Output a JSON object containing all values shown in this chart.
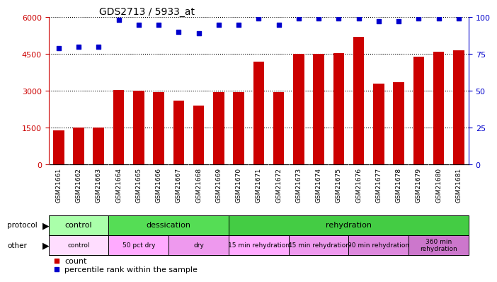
{
  "title": "GDS2713 / 5933_at",
  "samples": [
    "GSM21661",
    "GSM21662",
    "GSM21663",
    "GSM21664",
    "GSM21665",
    "GSM21666",
    "GSM21667",
    "GSM21668",
    "GSM21669",
    "GSM21670",
    "GSM21671",
    "GSM21672",
    "GSM21673",
    "GSM21674",
    "GSM21675",
    "GSM21676",
    "GSM21677",
    "GSM21678",
    "GSM21679",
    "GSM21680",
    "GSM21681"
  ],
  "bar_values": [
    1400,
    1500,
    1500,
    3050,
    3000,
    2950,
    2600,
    2400,
    2950,
    2950,
    4200,
    2950,
    4500,
    4500,
    4550,
    5200,
    3300,
    3350,
    4400,
    4600,
    4650
  ],
  "dot_values_pct": [
    79,
    80,
    80,
    98,
    95,
    95,
    90,
    89,
    95,
    95,
    99,
    95,
    99,
    99,
    99,
    99,
    97,
    97,
    99,
    99,
    99
  ],
  "bar_color": "#cc0000",
  "dot_color": "#0000cc",
  "ylim_left": [
    0,
    6000
  ],
  "ylim_right": [
    0,
    100
  ],
  "yticks_left": [
    0,
    1500,
    3000,
    4500,
    6000
  ],
  "yticks_right": [
    0,
    25,
    50,
    75,
    100
  ],
  "protocol_groups": [
    {
      "label": "control",
      "start": 0,
      "end": 3,
      "color": "#aaffaa"
    },
    {
      "label": "dessication",
      "start": 3,
      "end": 9,
      "color": "#55dd55"
    },
    {
      "label": "rehydration",
      "start": 9,
      "end": 21,
      "color": "#44cc44"
    }
  ],
  "other_groups": [
    {
      "label": "control",
      "start": 0,
      "end": 3,
      "color": "#ffddff"
    },
    {
      "label": "50 pct dry",
      "start": 3,
      "end": 6,
      "color": "#ffaaff"
    },
    {
      "label": "dry",
      "start": 6,
      "end": 9,
      "color": "#ee99ee"
    },
    {
      "label": "15 min rehydration",
      "start": 9,
      "end": 12,
      "color": "#ffaaff"
    },
    {
      "label": "45 min rehydration",
      "start": 12,
      "end": 15,
      "color": "#ee99ee"
    },
    {
      "label": "90 min rehydration",
      "start": 15,
      "end": 18,
      "color": "#dd88dd"
    },
    {
      "label": "360 min\nrehydration",
      "start": 18,
      "end": 21,
      "color": "#cc77cc"
    }
  ],
  "background_color": "#ffffff",
  "plot_bg_color": "#ffffff",
  "tick_label_color_left": "#cc0000",
  "tick_label_color_right": "#0000cc",
  "title_color": "#000000",
  "title_fontsize": 10,
  "xtick_bg_color": "#dddddd"
}
